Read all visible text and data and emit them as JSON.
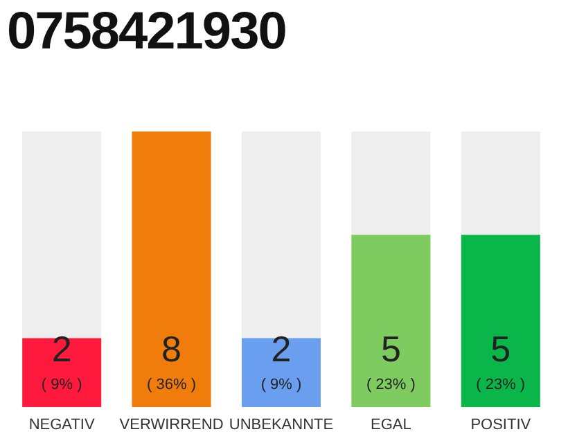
{
  "chart_data": {
    "type": "bar",
    "title": "0758421930",
    "categories": [
      "NEGATIV",
      "VERWIRREND",
      "UNBEKANNTE",
      "EGAL",
      "POSITIV"
    ],
    "values": [
      2,
      8,
      2,
      5,
      5
    ],
    "colors": [
      "#ff1a3d",
      "#f07c0c",
      "#6a9ff0",
      "#7ecb5f",
      "#0ab54a"
    ],
    "data_labels": true,
    "annotations": [
      "( 9% )",
      "( 36% )",
      "( 9% )",
      "( 23% )",
      "( 23% )"
    ]
  }
}
